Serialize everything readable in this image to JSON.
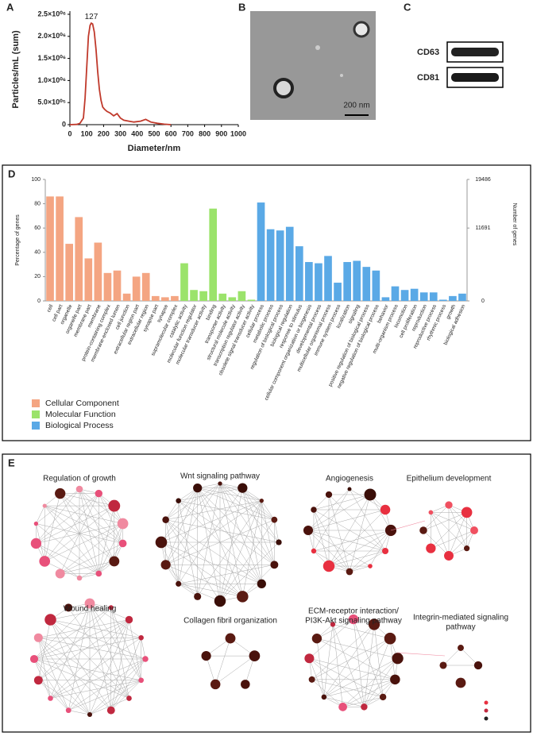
{
  "panel_labels": [
    "A",
    "B",
    "C",
    "D",
    "E"
  ],
  "chart_data": [
    {
      "type": "line",
      "x_label": "Diameter/nm",
      "y_label": "Particles/mL (sum)",
      "peak_label": "127",
      "color": "#c0392b",
      "x": [
        0,
        40,
        60,
        80,
        90,
        100,
        110,
        120,
        127,
        135,
        145,
        155,
        165,
        175,
        185,
        195,
        205,
        220,
        240,
        260,
        280,
        300,
        320,
        350,
        380,
        420,
        450,
        480,
        520,
        560,
        600
      ],
      "values": [
        0,
        5000,
        30000,
        150000,
        600000,
        1300000,
        2000000,
        2250000,
        2300000,
        2280000,
        2100000,
        1700000,
        1200000,
        800000,
        550000,
        400000,
        350000,
        300000,
        260000,
        200000,
        250000,
        150000,
        100000,
        80000,
        60000,
        80000,
        120000,
        60000,
        30000,
        10000,
        0
      ],
      "xlim": [
        0,
        1000
      ],
      "xticks": [
        0,
        100,
        200,
        300,
        400,
        500,
        600,
        700,
        800,
        900,
        1000
      ],
      "ylim": [
        0,
        2500000
      ],
      "yticks": [
        0,
        {
          "value": 500000,
          "label": "5.0×10⁰⁵"
        },
        {
          "value": 1000000,
          "label": "1.0×10⁰⁶"
        },
        {
          "value": 1500000,
          "label": "1.5×10⁰⁶"
        },
        {
          "value": 2000000,
          "label": "2.0×10⁰⁶"
        },
        {
          "value": 2500000,
          "label": "2.5×10⁰⁶"
        }
      ]
    },
    {
      "type": "bar",
      "y_label": "Percentage of genes",
      "y2_label": "Number of genes",
      "ylim": [
        0,
        100
      ],
      "yticks": [
        0,
        20,
        40,
        60,
        80,
        100
      ],
      "y2lim": [
        0,
        19486
      ],
      "y2ticks": [
        0,
        11691,
        19486
      ],
      "categories": [
        "cell",
        "cell part",
        "organelle",
        "organelle part",
        "membrane part",
        "membrane",
        "protein-containing complex",
        "membrane-enclosed lumen",
        "cell junction",
        "extracellular region part",
        "extracellular region",
        "synapse part",
        "synapse",
        "supramolecular complex",
        "catalytic activity",
        "molecular function regulator",
        "molecular transducer activity",
        "binding",
        "transporter activity",
        "structural molecule activity",
        "transcription regulator activity",
        "obsolete signal transducer activity",
        "cellular process",
        "metabolic process",
        "regulation of biological process",
        "biological regulation",
        "response to stimulus",
        "cellular component organization or biogenesis",
        "developmental process",
        "multicellular organismal process",
        "immune system process",
        "localization",
        "signaling",
        "positive regulation of biological process",
        "negative regulation of biological process",
        "behavior",
        "multi-organism process",
        "locomotion",
        "cell proliferation",
        "reproduction",
        "reproductive process",
        "rhythmic process",
        "growth",
        "biological adhesion"
      ],
      "series": [
        {
          "name": "Cellular Component",
          "color": "#f4a582",
          "values": [
            86,
            86,
            47,
            69,
            35,
            48,
            23,
            25,
            6,
            20,
            23,
            4,
            3,
            4,
            null,
            null,
            null,
            null,
            null,
            null,
            null,
            null,
            null,
            null,
            null,
            null,
            null,
            null,
            null,
            null,
            null,
            null,
            null,
            null,
            null,
            null,
            null,
            null,
            null,
            null,
            null,
            null,
            null,
            null
          ]
        },
        {
          "name": "Molecular Function",
          "color": "#9be36b",
          "values": [
            null,
            null,
            null,
            null,
            null,
            null,
            null,
            null,
            null,
            null,
            null,
            null,
            null,
            null,
            31,
            9,
            8,
            76,
            6,
            3,
            8,
            1,
            null,
            null,
            null,
            null,
            null,
            null,
            null,
            null,
            null,
            null,
            null,
            null,
            null,
            null,
            null,
            null,
            null,
            null,
            null,
            null,
            null,
            null
          ]
        },
        {
          "name": "Biological Process",
          "color": "#5aa9e6",
          "values": [
            null,
            null,
            null,
            null,
            null,
            null,
            null,
            null,
            null,
            null,
            null,
            null,
            null,
            null,
            null,
            null,
            null,
            null,
            null,
            null,
            null,
            null,
            81,
            59,
            58,
            61,
            45,
            32,
            31,
            37,
            15,
            32,
            33,
            28,
            25,
            3,
            12,
            9,
            10,
            7,
            7,
            1,
            4,
            6
          ]
        }
      ]
    }
  ],
  "panel_b": {
    "scale_bar": "200 nm"
  },
  "panel_c": {
    "bands": [
      "CD63",
      "CD81"
    ]
  },
  "panel_e": {
    "networks": [
      {
        "title_lines": [
          "Regulation of growth"
        ]
      },
      {
        "title_lines": [
          "Wnt signaling pathway"
        ]
      },
      {
        "title_lines": [
          "Angiogenesis"
        ]
      },
      {
        "title_lines": [
          "Epithelium development"
        ]
      },
      {
        "title_lines": [
          "Wound healing"
        ]
      },
      {
        "title_lines": [
          "Collagen fibril organization"
        ]
      },
      {
        "title_lines": [
          "ECM-receptor interaction/",
          "PI3K-Akt signaling pathway"
        ]
      },
      {
        "title_lines": [
          "Integrin-mediated signaling",
          "pathway"
        ]
      }
    ]
  }
}
